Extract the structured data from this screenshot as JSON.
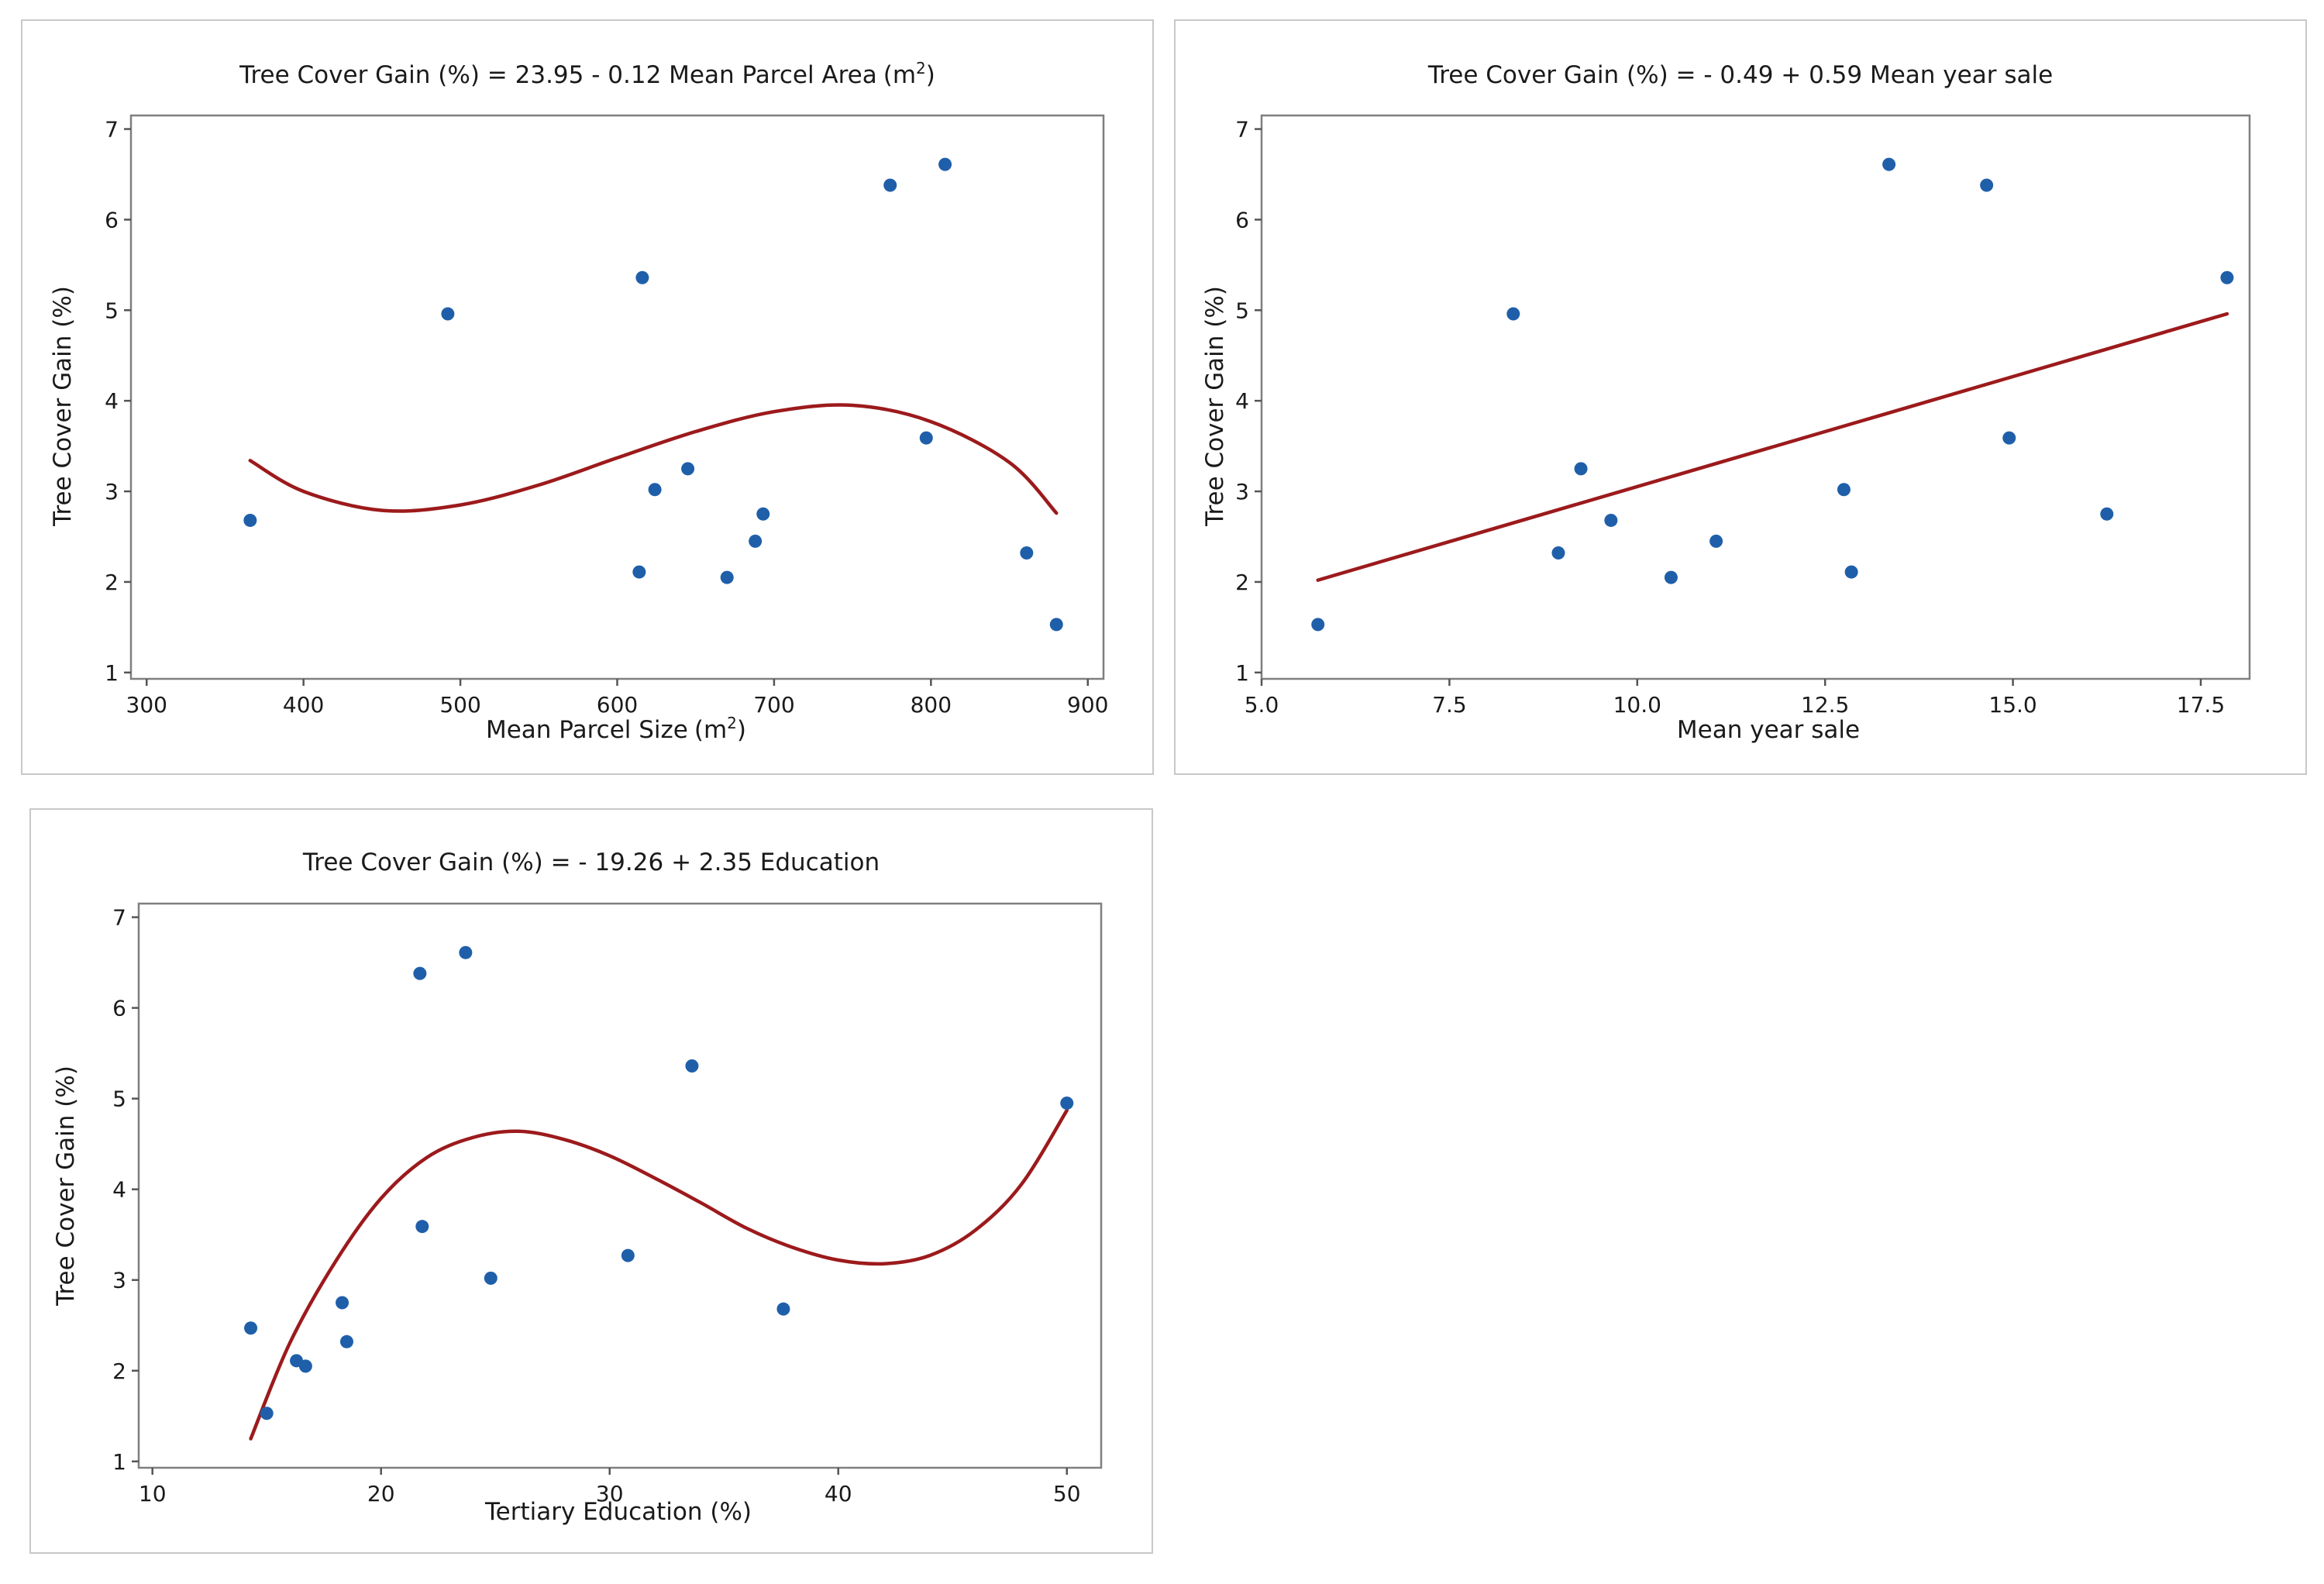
{
  "chart_data": [
    {
      "type": "scatter",
      "title": "Tree Cover Gain (%) = 23.95 - 0.12 Mean Parcel Area",
      "title_unit": "(m",
      "title_unit_sup": "2",
      "title_unit_close": ")",
      "xlabel": "Mean Parcel Size",
      "xlabel_unit": "(m",
      "xlabel_unit_sup": "2",
      "xlabel_unit_close": ")",
      "ylabel": "Tree Cover Gain (%)",
      "xlim": [
        290,
        910
      ],
      "ylim": [
        0.93,
        7.15
      ],
      "xticks": [
        300,
        400,
        500,
        600,
        700,
        800,
        900
      ],
      "xtick_labels": [
        "300",
        "400",
        "500",
        "600",
        "700",
        "800",
        "900"
      ],
      "yticks": [
        1,
        2,
        3,
        4,
        5,
        6,
        7
      ],
      "ytick_labels": [
        "1",
        "2",
        "3",
        "4",
        "5",
        "6",
        "7"
      ],
      "points": [
        {
          "x": 366,
          "y": 2.68
        },
        {
          "x": 492,
          "y": 4.96
        },
        {
          "x": 614,
          "y": 2.11
        },
        {
          "x": 616,
          "y": 5.36
        },
        {
          "x": 624,
          "y": 3.02
        },
        {
          "x": 645,
          "y": 3.25
        },
        {
          "x": 670,
          "y": 2.05
        },
        {
          "x": 688,
          "y": 2.45
        },
        {
          "x": 693,
          "y": 2.75
        },
        {
          "x": 774,
          "y": 6.38
        },
        {
          "x": 797,
          "y": 3.59
        },
        {
          "x": 809,
          "y": 6.61
        },
        {
          "x": 861,
          "y": 2.32
        },
        {
          "x": 880,
          "y": 1.53
        }
      ],
      "fit": {
        "type": "cubic",
        "x_range": [
          366,
          880
        ],
        "samples": [
          {
            "x": 366,
            "y": 3.34
          },
          {
            "x": 400,
            "y": 3.0
          },
          {
            "x": 450,
            "y": 2.79
          },
          {
            "x": 500,
            "y": 2.85
          },
          {
            "x": 550,
            "y": 3.07
          },
          {
            "x": 600,
            "y": 3.37
          },
          {
            "x": 650,
            "y": 3.66
          },
          {
            "x": 700,
            "y": 3.88
          },
          {
            "x": 750,
            "y": 3.95
          },
          {
            "x": 800,
            "y": 3.77
          },
          {
            "x": 850,
            "y": 3.32
          },
          {
            "x": 880,
            "y": 2.76
          }
        ]
      }
    },
    {
      "type": "scatter",
      "title": "Tree Cover Gain (%) = - 0.49 + 0.59 Mean year sale",
      "xlabel": "Mean year sale",
      "ylabel": "Tree Cover Gain (%)",
      "xlim": [
        5.0,
        18.15
      ],
      "ylim": [
        0.93,
        7.15
      ],
      "xticks": [
        5.0,
        7.5,
        10.0,
        12.5,
        15.0,
        17.5
      ],
      "xtick_labels": [
        "5.0",
        "7.5",
        "10.0",
        "12.5",
        "15.0",
        "17.5"
      ],
      "yticks": [
        1,
        2,
        3,
        4,
        5,
        6,
        7
      ],
      "ytick_labels": [
        "1",
        "2",
        "3",
        "4",
        "5",
        "6",
        "7"
      ],
      "points": [
        {
          "x": 5.75,
          "y": 1.53
        },
        {
          "x": 8.35,
          "y": 4.96
        },
        {
          "x": 8.95,
          "y": 2.32
        },
        {
          "x": 9.25,
          "y": 3.25
        },
        {
          "x": 9.65,
          "y": 2.68
        },
        {
          "x": 10.45,
          "y": 2.05
        },
        {
          "x": 11.05,
          "y": 2.45
        },
        {
          "x": 12.75,
          "y": 3.02
        },
        {
          "x": 12.85,
          "y": 2.11
        },
        {
          "x": 13.35,
          "y": 6.61
        },
        {
          "x": 14.65,
          "y": 6.38
        },
        {
          "x": 14.95,
          "y": 3.59
        },
        {
          "x": 16.25,
          "y": 2.75
        },
        {
          "x": 17.85,
          "y": 5.36
        }
      ],
      "fit": {
        "type": "linear",
        "x_range": [
          5.75,
          17.85
        ],
        "samples": [
          {
            "x": 5.75,
            "y": 2.02
          },
          {
            "x": 17.85,
            "y": 4.96
          }
        ]
      }
    },
    {
      "type": "scatter",
      "title": "Tree Cover Gain (%) = - 19.26 + 2.35 Education",
      "xlabel": "Tertiary Education (%)",
      "ylabel": "Tree Cover Gain (%)",
      "xlim": [
        9.4,
        51.5
      ],
      "ylim": [
        0.93,
        7.15
      ],
      "xticks": [
        10,
        20,
        30,
        40,
        50
      ],
      "xtick_labels": [
        "10",
        "20",
        "30",
        "40",
        "50"
      ],
      "yticks": [
        1,
        2,
        3,
        4,
        5,
        6,
        7
      ],
      "ytick_labels": [
        "1",
        "2",
        "3",
        "4",
        "5",
        "6",
        "7"
      ],
      "points": [
        {
          "x": 14.3,
          "y": 2.47
        },
        {
          "x": 15.0,
          "y": 1.53
        },
        {
          "x": 16.3,
          "y": 2.11
        },
        {
          "x": 16.7,
          "y": 2.05
        },
        {
          "x": 18.3,
          "y": 2.75
        },
        {
          "x": 18.5,
          "y": 2.32
        },
        {
          "x": 21.7,
          "y": 6.38
        },
        {
          "x": 21.8,
          "y": 3.59
        },
        {
          "x": 23.7,
          "y": 6.61
        },
        {
          "x": 24.8,
          "y": 3.02
        },
        {
          "x": 30.8,
          "y": 3.27
        },
        {
          "x": 33.6,
          "y": 5.36
        },
        {
          "x": 37.6,
          "y": 2.68
        },
        {
          "x": 50.0,
          "y": 4.95
        }
      ],
      "fit": {
        "type": "cubic",
        "x_range": [
          14.3,
          50.0
        ],
        "samples": [
          {
            "x": 14.3,
            "y": 1.25
          },
          {
            "x": 16.0,
            "y": 2.3
          },
          {
            "x": 18.0,
            "y": 3.2
          },
          {
            "x": 20.0,
            "y": 3.9
          },
          {
            "x": 22.0,
            "y": 4.35
          },
          {
            "x": 24.0,
            "y": 4.57
          },
          {
            "x": 26.0,
            "y": 4.64
          },
          {
            "x": 28.0,
            "y": 4.55
          },
          {
            "x": 30.0,
            "y": 4.37
          },
          {
            "x": 32.0,
            "y": 4.12
          },
          {
            "x": 34.0,
            "y": 3.85
          },
          {
            "x": 36.0,
            "y": 3.57
          },
          {
            "x": 38.0,
            "y": 3.36
          },
          {
            "x": 40.0,
            "y": 3.22
          },
          {
            "x": 42.0,
            "y": 3.18
          },
          {
            "x": 44.0,
            "y": 3.27
          },
          {
            "x": 46.0,
            "y": 3.55
          },
          {
            "x": 48.0,
            "y": 4.05
          },
          {
            "x": 50.0,
            "y": 4.87
          }
        ]
      }
    }
  ]
}
